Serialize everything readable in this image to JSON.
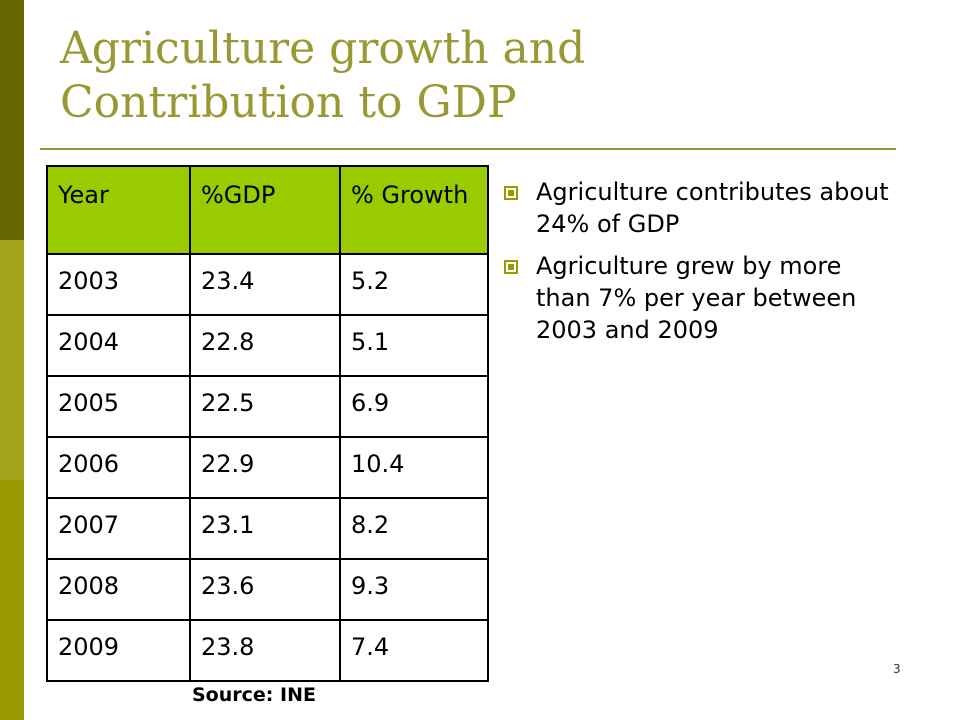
{
  "title": {
    "line1": "Agriculture growth and",
    "line2": "Contribution to GDP"
  },
  "table": {
    "headers": [
      "Year",
      "%GDP",
      "% Growth"
    ],
    "rows": [
      [
        "2003",
        "23.4",
        "5.2"
      ],
      [
        "2004",
        "22.8",
        "5.1"
      ],
      [
        "2005",
        "22.5",
        "6.9"
      ],
      [
        "2006",
        "22.9",
        "10.4"
      ],
      [
        "2007",
        "23.1",
        "8.2"
      ],
      [
        "2008",
        "23.6",
        "9.3"
      ],
      [
        "2009",
        "23.8",
        "7.4"
      ]
    ]
  },
  "bullets": [
    "Agriculture contributes about 24% of GDP",
    "Agriculture grew by more than 7% per year between 2003 and 2009"
  ],
  "bullet_icon": "square-bullet-icon",
  "source": "Source: INE",
  "page_number": "3",
  "colors": {
    "title": "#999933",
    "header_fill": "#99cc00",
    "accent_dark": "#666600",
    "accent": "#999900"
  }
}
